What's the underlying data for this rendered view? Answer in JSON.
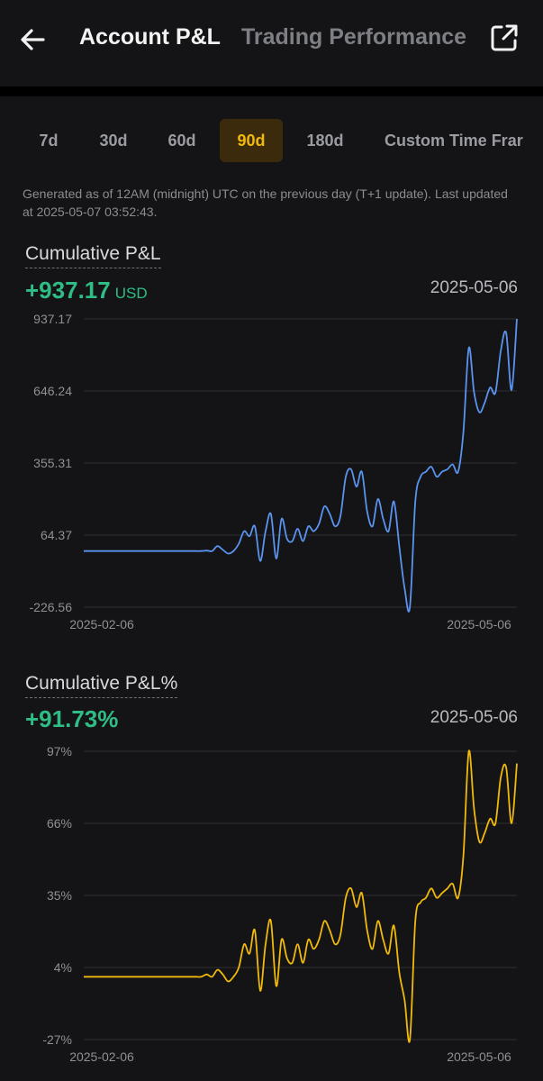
{
  "header": {
    "back_icon": "arrow-left-icon",
    "tabs": [
      {
        "label": "Account P&L",
        "active": true
      },
      {
        "label": "Trading Performance",
        "active": false
      }
    ],
    "share_icon": "external-link-icon"
  },
  "filters": {
    "items": [
      "7d",
      "30d",
      "60d",
      "90d",
      "180d",
      "Custom Time Frar"
    ],
    "selected": "90d",
    "selected_color": "#f0b90b"
  },
  "note": "Generated as of 12AM (midnight) UTC on the previous day (T+1 update). Last updated at 2025-05-07 03:52:43.",
  "pnl": {
    "title": "Cumulative P&L",
    "value": "+937.17",
    "unit": "USD",
    "date": "2025-05-06",
    "value_color": "#2ebd85"
  },
  "pnl_pct": {
    "title": "Cumulative P&L%",
    "value": "+91.73%",
    "date": "2025-05-06"
  },
  "chart_data": [
    {
      "type": "line",
      "title": "Cumulative P&L",
      "color": "#5a94f0",
      "x_labels": [
        "2025-02-06",
        "2025-05-06"
      ],
      "y_ticks": [
        "937.17",
        "646.24",
        "355.31",
        "64.37",
        "-226.56"
      ],
      "ylim": [
        -226.56,
        937.17
      ],
      "grid": true,
      "values": [
        0,
        0,
        0,
        0,
        0,
        0,
        0,
        0,
        0,
        0,
        0,
        0,
        0,
        0,
        0,
        0,
        0,
        0,
        0,
        0,
        0,
        0,
        0,
        2,
        0,
        20,
        5,
        -10,
        0,
        30,
        80,
        60,
        100,
        -40,
        80,
        150,
        -30,
        130,
        50,
        40,
        90,
        40,
        100,
        80,
        110,
        180,
        150,
        100,
        140,
        300,
        330,
        260,
        320,
        160,
        100,
        210,
        130,
        80,
        200,
        20,
        -150,
        -226,
        200,
        300,
        320,
        340,
        300,
        320,
        330,
        350,
        320,
        480,
        820,
        640,
        560,
        600,
        660,
        640,
        810,
        880,
        650,
        937
      ],
      "final_value": 937.17
    },
    {
      "type": "line",
      "title": "Cumulative P&L%",
      "color": "#f0b90b",
      "x_labels": [
        "2025-02-06",
        "2025-05-06"
      ],
      "y_ticks": [
        "97%",
        "66%",
        "35%",
        "4%",
        "-27%"
      ],
      "ylim": [
        -27,
        97
      ],
      "grid": true,
      "values": [
        0,
        0,
        0,
        0,
        0,
        0,
        0,
        0,
        0,
        0,
        0,
        0,
        0,
        0,
        0,
        0,
        0,
        0,
        0,
        0,
        0,
        0,
        0,
        1,
        0,
        3,
        1,
        -2,
        0,
        4,
        14,
        10,
        20,
        -6,
        14,
        24,
        -4,
        16,
        8,
        6,
        14,
        6,
        16,
        12,
        16,
        24,
        20,
        14,
        18,
        34,
        38,
        30,
        36,
        20,
        12,
        24,
        16,
        10,
        22,
        2,
        -10,
        -27,
        24,
        32,
        34,
        38,
        34,
        36,
        38,
        40,
        34,
        52,
        97,
        72,
        58,
        62,
        68,
        66,
        86,
        90,
        66,
        91.73
      ],
      "final_value": 91.73
    }
  ]
}
